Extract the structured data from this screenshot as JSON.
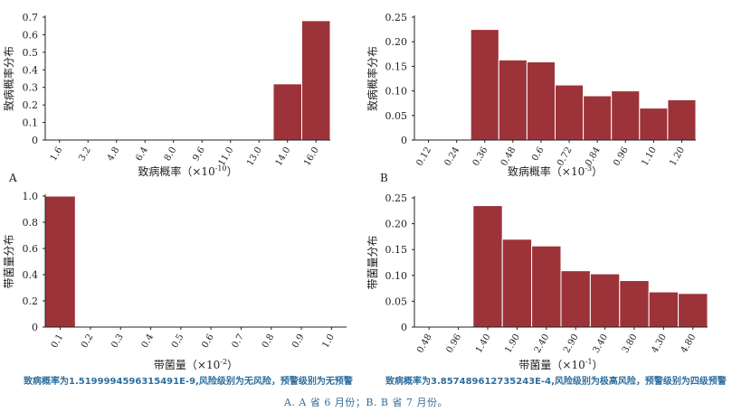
{
  "colors": {
    "bar": "#9c3339",
    "bar_edge": "#ffffff",
    "axis": "#222222",
    "status_text": "#2e6e9e",
    "caption_text": "#2e6e9e"
  },
  "chart_data": [
    {
      "id": "A",
      "panel_label": "A",
      "type": "bar",
      "categories": [
        "1.6",
        "3.2",
        "4.8",
        "6.4",
        "8.0",
        "9.6",
        "11.0",
        "13.0",
        "14.0",
        "16.0"
      ],
      "values": [
        0,
        0,
        0,
        0,
        0,
        0,
        0,
        0,
        0.32,
        0.68
      ],
      "ylim": [
        0,
        0.7
      ],
      "yticks": [
        "0",
        "0.1",
        "0.2",
        "0.3",
        "0.4",
        "0.5",
        "0.6",
        "0.7"
      ],
      "xlabel": "致病概率（×10",
      "xlabel_exp": "-10",
      "xlabel_close": "）",
      "ylabel": "致病概率分布",
      "grid": false
    },
    {
      "id": "B",
      "panel_label": "B",
      "type": "bar",
      "categories": [
        "0.12",
        "0.24",
        "0.36",
        "0.48",
        "0.6",
        "0.72",
        "0.84",
        "0.96",
        "1.10",
        "1.20"
      ],
      "values": [
        0,
        0,
        0.225,
        0.163,
        0.159,
        0.112,
        0.09,
        0.1,
        0.065,
        0.082
      ],
      "ylim": [
        0,
        0.25
      ],
      "yticks": [
        "0",
        "0.05",
        "0.10",
        "0.15",
        "0.20",
        "0.25"
      ],
      "xlabel": "致病概率（×10",
      "xlabel_exp": "-3",
      "xlabel_close": "）",
      "ylabel": "致病概率分布",
      "grid": false
    },
    {
      "id": "C",
      "panel_label": "",
      "type": "bar",
      "categories": [
        "0.1",
        "0.2",
        "0.3",
        "0.4",
        "0.5",
        "0.6",
        "0.7",
        "0.8",
        "0.9",
        "1.0"
      ],
      "values": [
        1.0,
        0,
        0,
        0,
        0,
        0,
        0,
        0,
        0,
        0
      ],
      "ylim": [
        0,
        1.0
      ],
      "yticks": [
        "0",
        "0.2",
        "0.4",
        "0.6",
        "0.8",
        "1.0"
      ],
      "xlabel": "带菌量（×10",
      "xlabel_exp": "-2",
      "xlabel_close": "）",
      "ylabel": "带菌量分布",
      "grid": false
    },
    {
      "id": "D",
      "panel_label": "",
      "type": "bar",
      "categories": [
        "0.48",
        "0.96",
        "1.40",
        "1.90",
        "2.40",
        "2.90",
        "3.40",
        "3.80",
        "4.30",
        "4.80"
      ],
      "values": [
        0,
        0,
        0.235,
        0.17,
        0.157,
        0.109,
        0.103,
        0.09,
        0.068,
        0.065
      ],
      "ylim": [
        0,
        0.25
      ],
      "yticks": [
        "0",
        "0.05",
        "0.10",
        "0.15",
        "0.20",
        "0.25"
      ],
      "xlabel": "带菌量（×10",
      "xlabel_exp": "-1",
      "xlabel_close": "）",
      "ylabel": "带菌量分布",
      "grid": false
    }
  ],
  "status_left": "致病概率为1.5199994596315491E-9,风险级别为无风险，预警级别为无预警",
  "status_right": "致病概率为3.857489612735243E-4,风险级别为极高风险，预警级别为四级预警",
  "caption": "A. A 省 6 月份；B. B 省 7 月份。"
}
